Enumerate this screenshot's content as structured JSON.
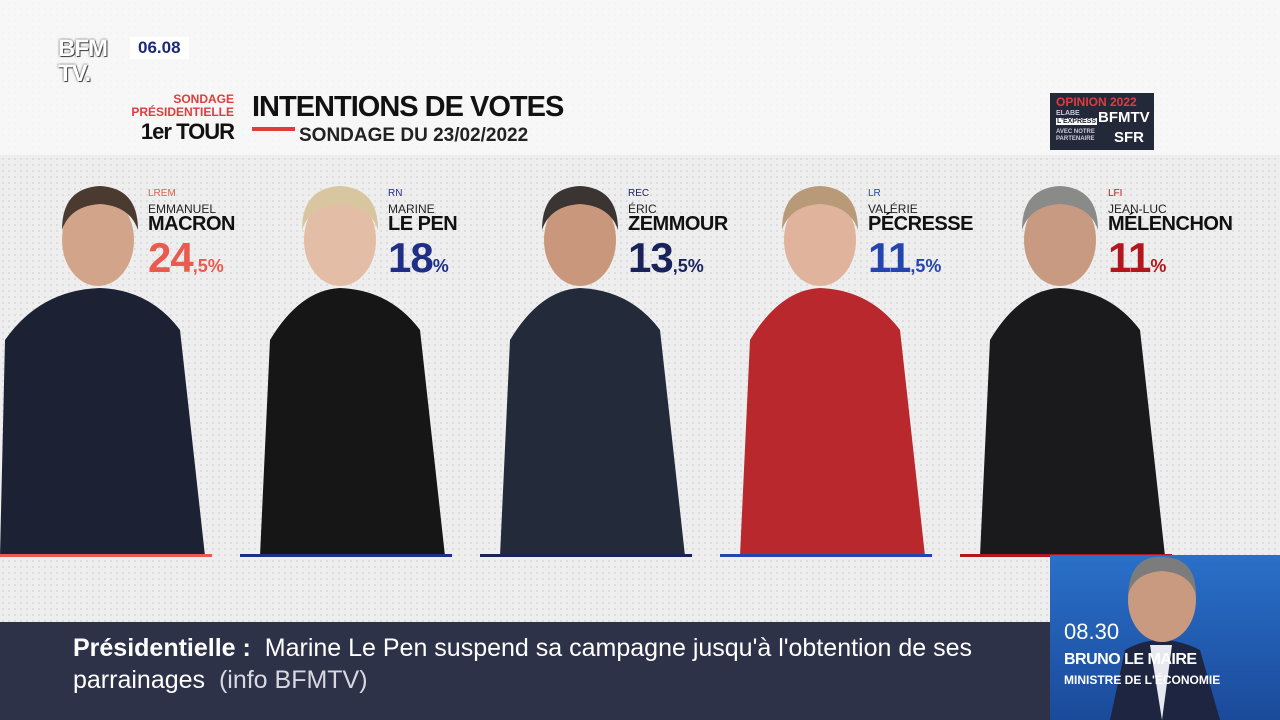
{
  "channel": {
    "logo_top": "BFM",
    "logo_bottom": "TV.",
    "time": "06.08"
  },
  "header": {
    "survey": "SONDAGE PRÉSIDENTIELLE",
    "round": "1er TOUR",
    "title": "INTENTIONS DE VOTES",
    "subtitle": "SONDAGE DU 23/02/2022",
    "partner": {
      "label": "OPINION 2022",
      "pollster": "ELABE",
      "magazine": "L'EXPRESS",
      "channel": "BFMTV",
      "note": "AVEC NOTRE PARTENAIRE",
      "sponsor": "SFR"
    }
  },
  "candidates": [
    {
      "party": "LREM",
      "first_name": "EMMANUEL",
      "last_name": "MACRON",
      "score_whole": "24",
      "score_rest": ",5%",
      "color": "#ea5a4f"
    },
    {
      "party": "RN",
      "first_name": "MARINE",
      "last_name": "LE PEN",
      "score_whole": "18",
      "score_rest": "%",
      "color": "#1f2f86"
    },
    {
      "party": "REC",
      "first_name": "ÉRIC",
      "last_name": "ZEMMOUR",
      "score_whole": "13",
      "score_rest": ",5%",
      "color": "#19235a"
    },
    {
      "party": "LR",
      "first_name": "VALÉRIE",
      "last_name": "PÉCRESSE",
      "score_whole": "11",
      "score_rest": ",5%",
      "color": "#2444b0"
    },
    {
      "party": "LFI",
      "first_name": "JEAN-LUC",
      "last_name": "MÉLENCHON",
      "score_whole": "11",
      "score_rest": "%",
      "color": "#b3161c"
    }
  ],
  "ticker": {
    "label": "Présidentielle :",
    "text": "Marine Le Pen suspend sa campagne jusqu'à l'obtention de ses parrainages",
    "source": "(info BFMTV)"
  },
  "inset": {
    "time": "08.30",
    "name": "BRUNO LE MAIRE",
    "role": "MINISTRE DE L'ÉCONOMIE"
  }
}
